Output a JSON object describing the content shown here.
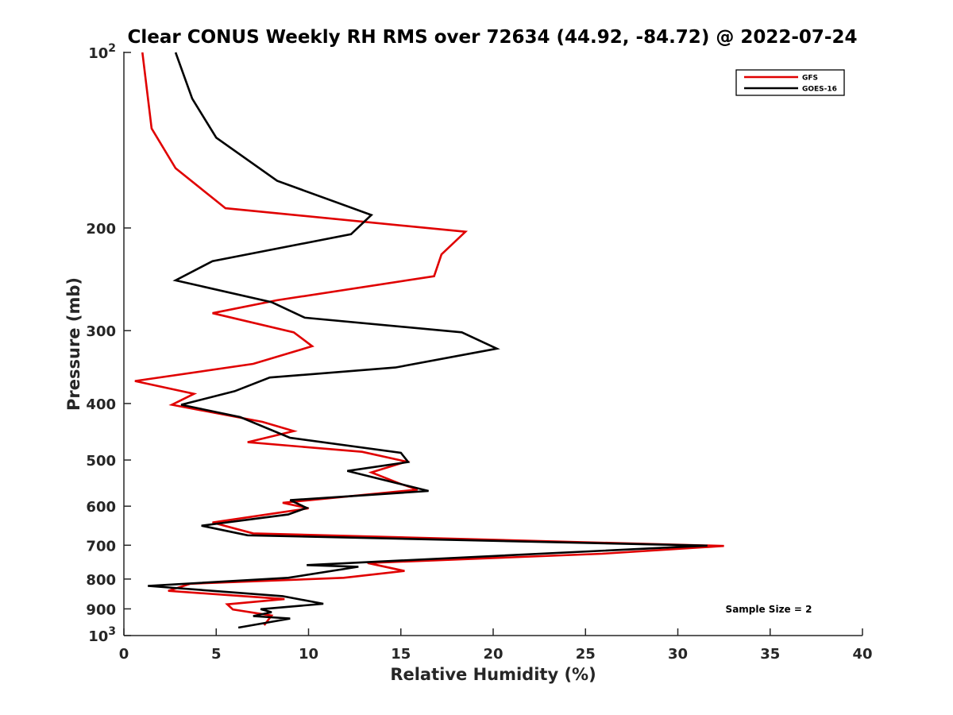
{
  "chart_data": {
    "type": "line",
    "title": "Clear CONUS Weekly RH RMS over 72634 (44.92, -84.72) @ 2022-07-24",
    "xlabel": "Relative Humidity (%)",
    "ylabel": "Pressure (mb)",
    "xlim": [
      0,
      40
    ],
    "ylim": [
      100,
      1000
    ],
    "yscale": "log",
    "y_reversed": true,
    "grid": false,
    "legend_position": "top-right",
    "x_ticks": [
      0,
      5,
      10,
      15,
      20,
      25,
      30,
      35,
      40
    ],
    "x_tick_labels": [
      "0",
      "5",
      "10",
      "15",
      "20",
      "25",
      "30",
      "35",
      "40"
    ],
    "y_ticks": [
      {
        "value": 100,
        "base": "10",
        "exp": "2",
        "label": ""
      },
      {
        "value": 200,
        "label": "200"
      },
      {
        "value": 300,
        "label": "300"
      },
      {
        "value": 400,
        "label": "400"
      },
      {
        "value": 500,
        "label": "500"
      },
      {
        "value": 600,
        "label": "600"
      },
      {
        "value": 700,
        "label": "700"
      },
      {
        "value": 800,
        "label": "800"
      },
      {
        "value": 900,
        "label": "900"
      },
      {
        "value": 1000,
        "base": "10",
        "exp": "3",
        "label": ""
      }
    ],
    "annotation": "Sample Size = 2",
    "series": [
      {
        "name": "GFS",
        "color": "#e00000",
        "points": [
          [
            1.0,
            100
          ],
          [
            1.5,
            135
          ],
          [
            2.8,
            158
          ],
          [
            5.5,
            185
          ],
          [
            18.5,
            203
          ],
          [
            17.2,
            222
          ],
          [
            16.8,
            242
          ],
          [
            8.3,
            266
          ],
          [
            4.8,
            280
          ],
          [
            9.2,
            302
          ],
          [
            10.2,
            319
          ],
          [
            7.0,
            342
          ],
          [
            0.6,
            366
          ],
          [
            3.8,
            385
          ],
          [
            2.6,
            402
          ],
          [
            7.5,
            430
          ],
          [
            9.2,
            446
          ],
          [
            6.7,
            466
          ],
          [
            12.9,
            484
          ],
          [
            15.3,
            503
          ],
          [
            13.4,
            525
          ],
          [
            14.9,
            548
          ],
          [
            15.9,
            562
          ],
          [
            8.6,
            592
          ],
          [
            10.0,
            605
          ],
          [
            4.8,
            640
          ],
          [
            7.0,
            668
          ],
          [
            32.5,
            702
          ],
          [
            25.9,
            724
          ],
          [
            13.2,
            751
          ],
          [
            15.2,
            775
          ],
          [
            11.9,
            796
          ],
          [
            3.6,
            815
          ],
          [
            2.4,
            838
          ],
          [
            8.7,
            866
          ],
          [
            5.6,
            884
          ],
          [
            5.9,
            902
          ],
          [
            8.0,
            924
          ],
          [
            7.6,
            960
          ]
        ]
      },
      {
        "name": "GOES-16",
        "color": "#000000",
        "points": [
          [
            2.8,
            100
          ],
          [
            3.7,
            120
          ],
          [
            5.0,
            140
          ],
          [
            8.3,
            166
          ],
          [
            13.4,
            190
          ],
          [
            12.3,
            205
          ],
          [
            4.8,
            228
          ],
          [
            2.8,
            246
          ],
          [
            8.0,
            268
          ],
          [
            9.8,
            285
          ],
          [
            18.3,
            302
          ],
          [
            20.2,
            322
          ],
          [
            14.7,
            347
          ],
          [
            7.9,
            361
          ],
          [
            6.0,
            381
          ],
          [
            3.1,
            402
          ],
          [
            6.3,
            422
          ],
          [
            9.0,
            458
          ],
          [
            15.0,
            486
          ],
          [
            15.4,
            504
          ],
          [
            12.1,
            522
          ],
          [
            14.6,
            546
          ],
          [
            16.5,
            565
          ],
          [
            9.0,
            586
          ],
          [
            9.9,
            604
          ],
          [
            8.9,
            620
          ],
          [
            4.2,
            648
          ],
          [
            6.7,
            673
          ],
          [
            31.6,
            701
          ],
          [
            9.9,
            757
          ],
          [
            12.7,
            762
          ],
          [
            8.9,
            796
          ],
          [
            1.3,
            822
          ],
          [
            8.6,
            856
          ],
          [
            10.8,
            882
          ],
          [
            7.4,
            901
          ],
          [
            8.0,
            912
          ],
          [
            7.0,
            926
          ],
          [
            9.0,
            935
          ],
          [
            6.2,
            969
          ]
        ]
      }
    ]
  }
}
